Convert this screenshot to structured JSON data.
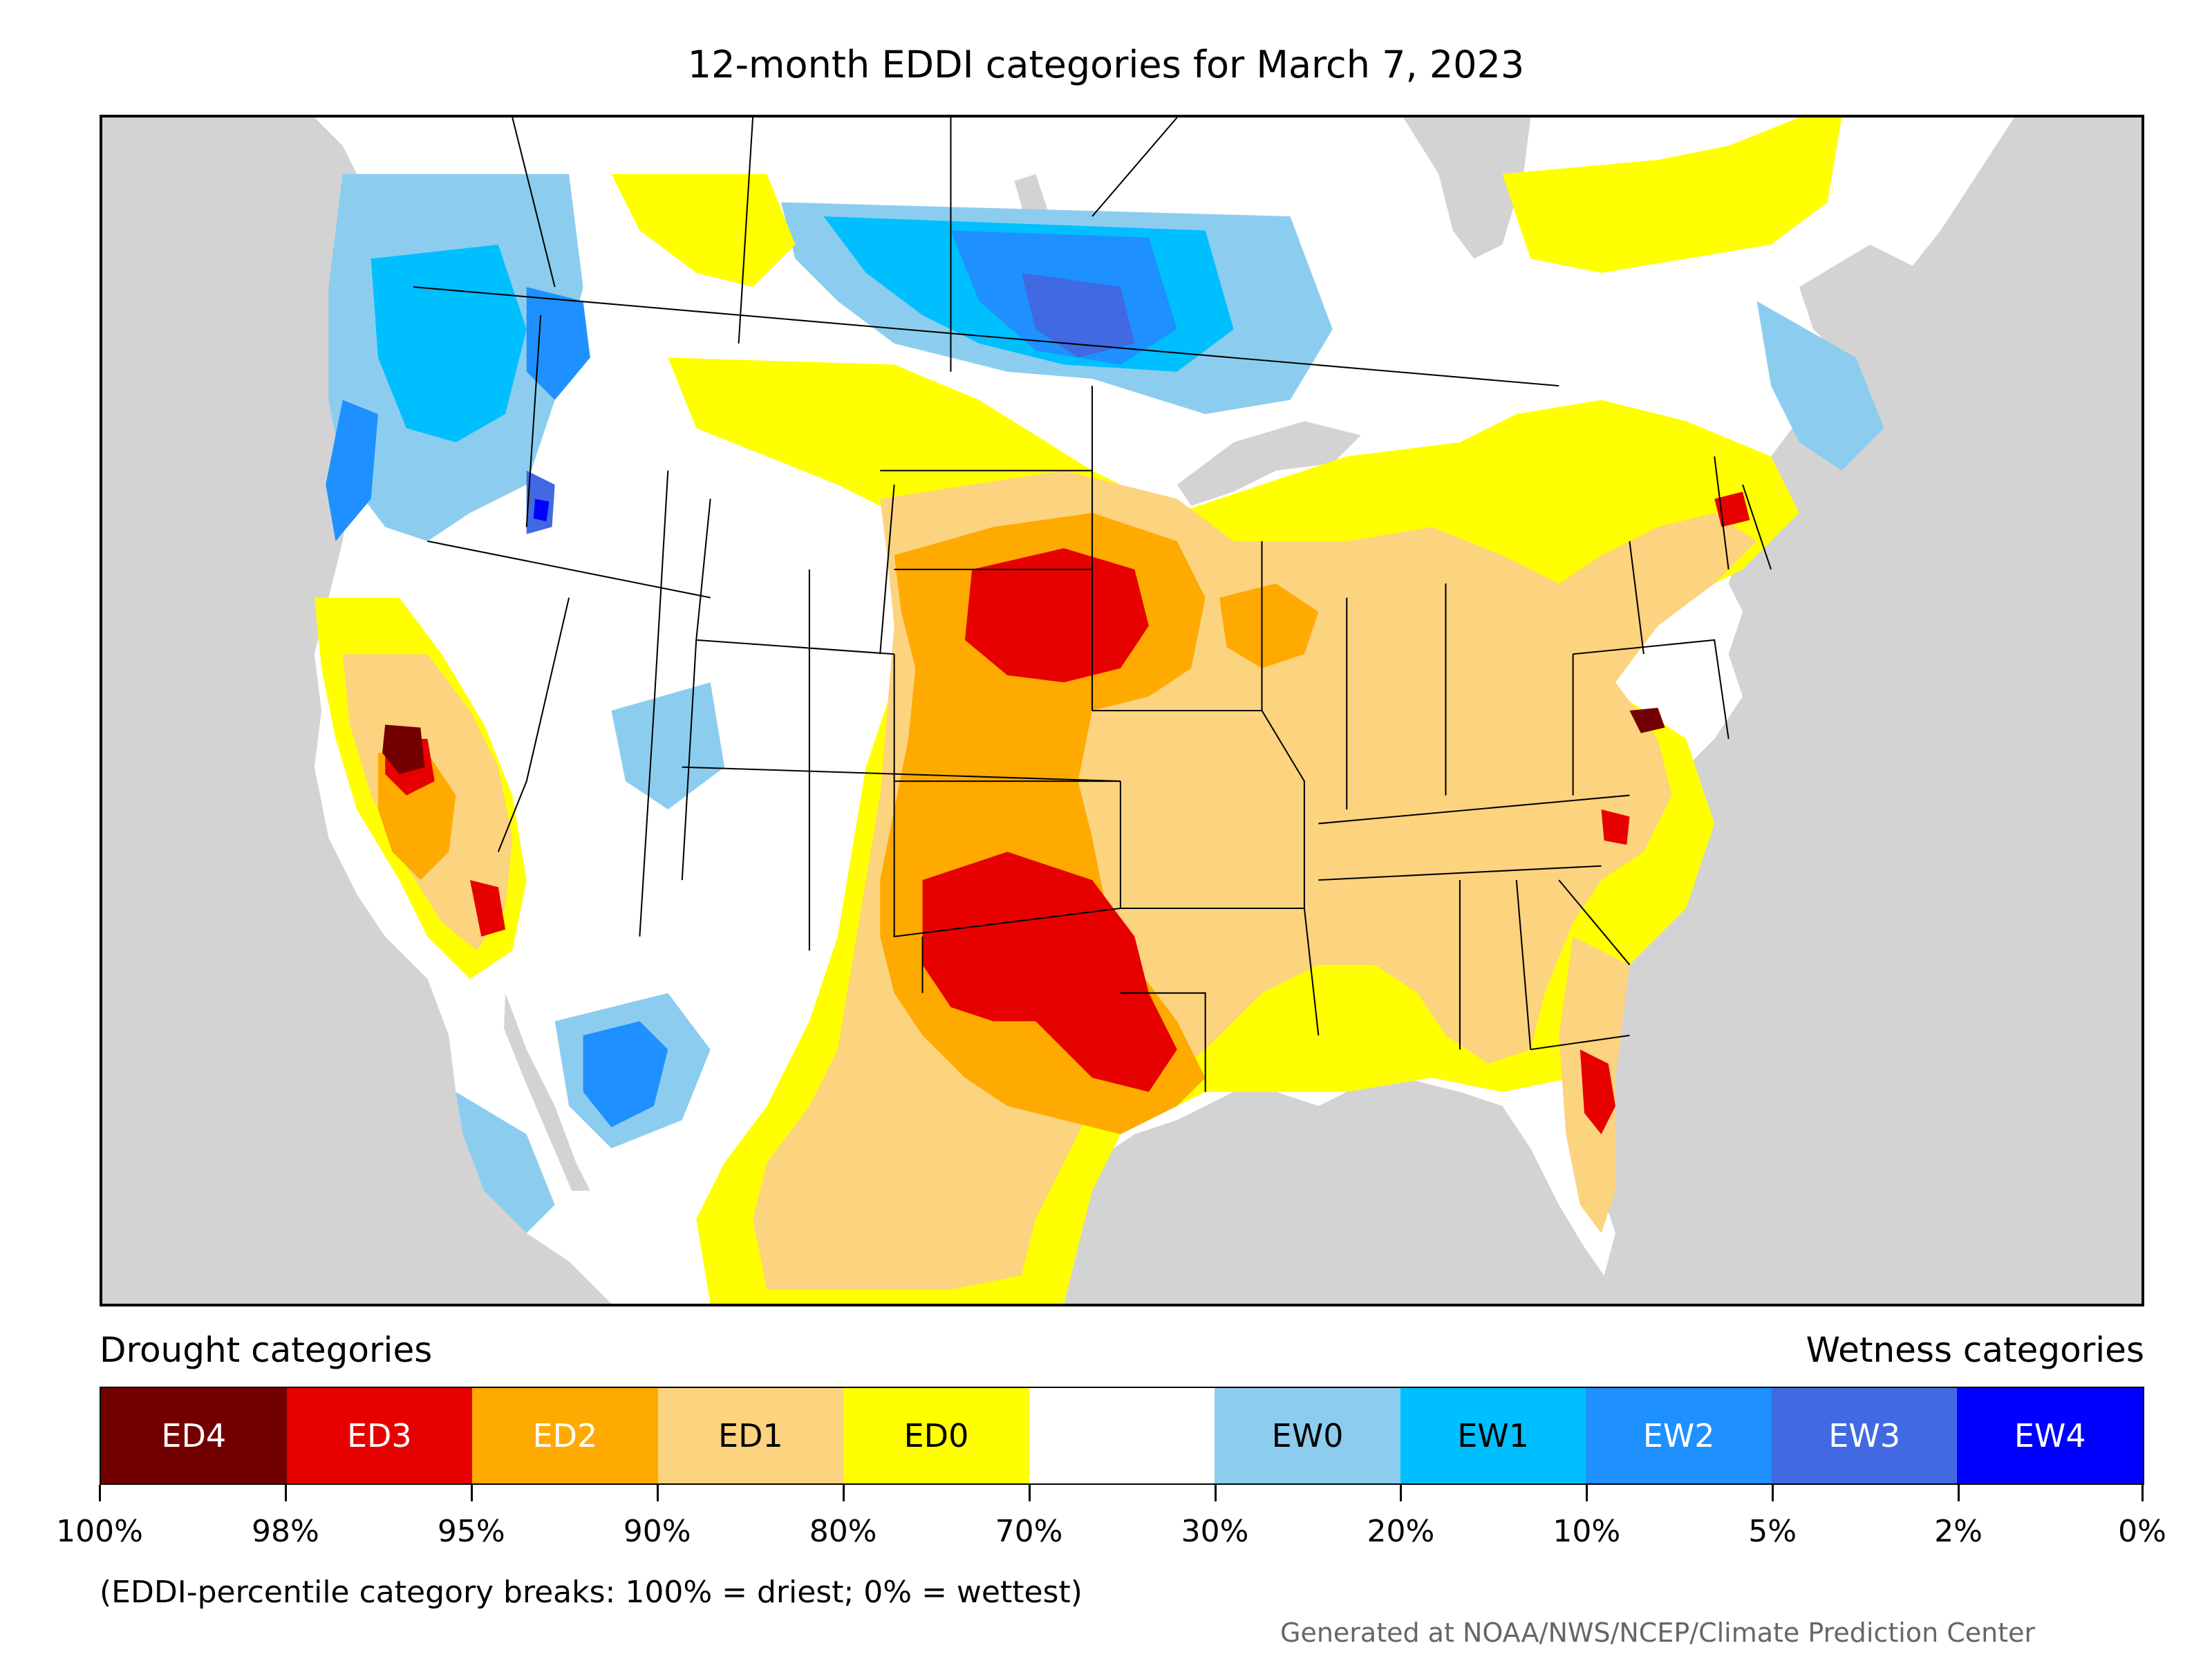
{
  "title": "12-month EDDI categories for March 7, 2023",
  "legend": {
    "drought_heading": "Drought categories",
    "wetness_heading": "Wetness categories",
    "categories": [
      {
        "label": "ED4",
        "color": "#730000",
        "text_color": "#ffffff"
      },
      {
        "label": "ED3",
        "color": "#e60000",
        "text_color": "#ffffff"
      },
      {
        "label": "ED2",
        "color": "#ffaa00",
        "text_color": "#ffffff"
      },
      {
        "label": "ED1",
        "color": "#fcd37f",
        "text_color": "#000000"
      },
      {
        "label": "ED0",
        "color": "#ffff00",
        "text_color": "#000000"
      },
      {
        "label": "",
        "color": "#ffffff",
        "text_color": "#000000"
      },
      {
        "label": "EW0",
        "color": "#8ccdef",
        "text_color": "#000000"
      },
      {
        "label": "EW1",
        "color": "#00bfff",
        "text_color": "#000000"
      },
      {
        "label": "EW2",
        "color": "#1e90ff",
        "text_color": "#ffffff"
      },
      {
        "label": "EW3",
        "color": "#4169e1",
        "text_color": "#ffffff"
      },
      {
        "label": "EW4",
        "color": "#0000ff",
        "text_color": "#ffffff"
      }
    ],
    "breaks": [
      "100%",
      "98%",
      "95%",
      "90%",
      "80%",
      "70%",
      "30%",
      "20%",
      "10%",
      "5%",
      "2%",
      "0%"
    ],
    "note": "(EDDI-percentile category breaks: 100% = driest; 0% = wettest)"
  },
  "credit": "Generated at NOAA/NWS/NCEP/Climate Prediction Center",
  "map": {
    "ocean_color": "#d3d3d3",
    "land_color": "#ffffff"
  }
}
